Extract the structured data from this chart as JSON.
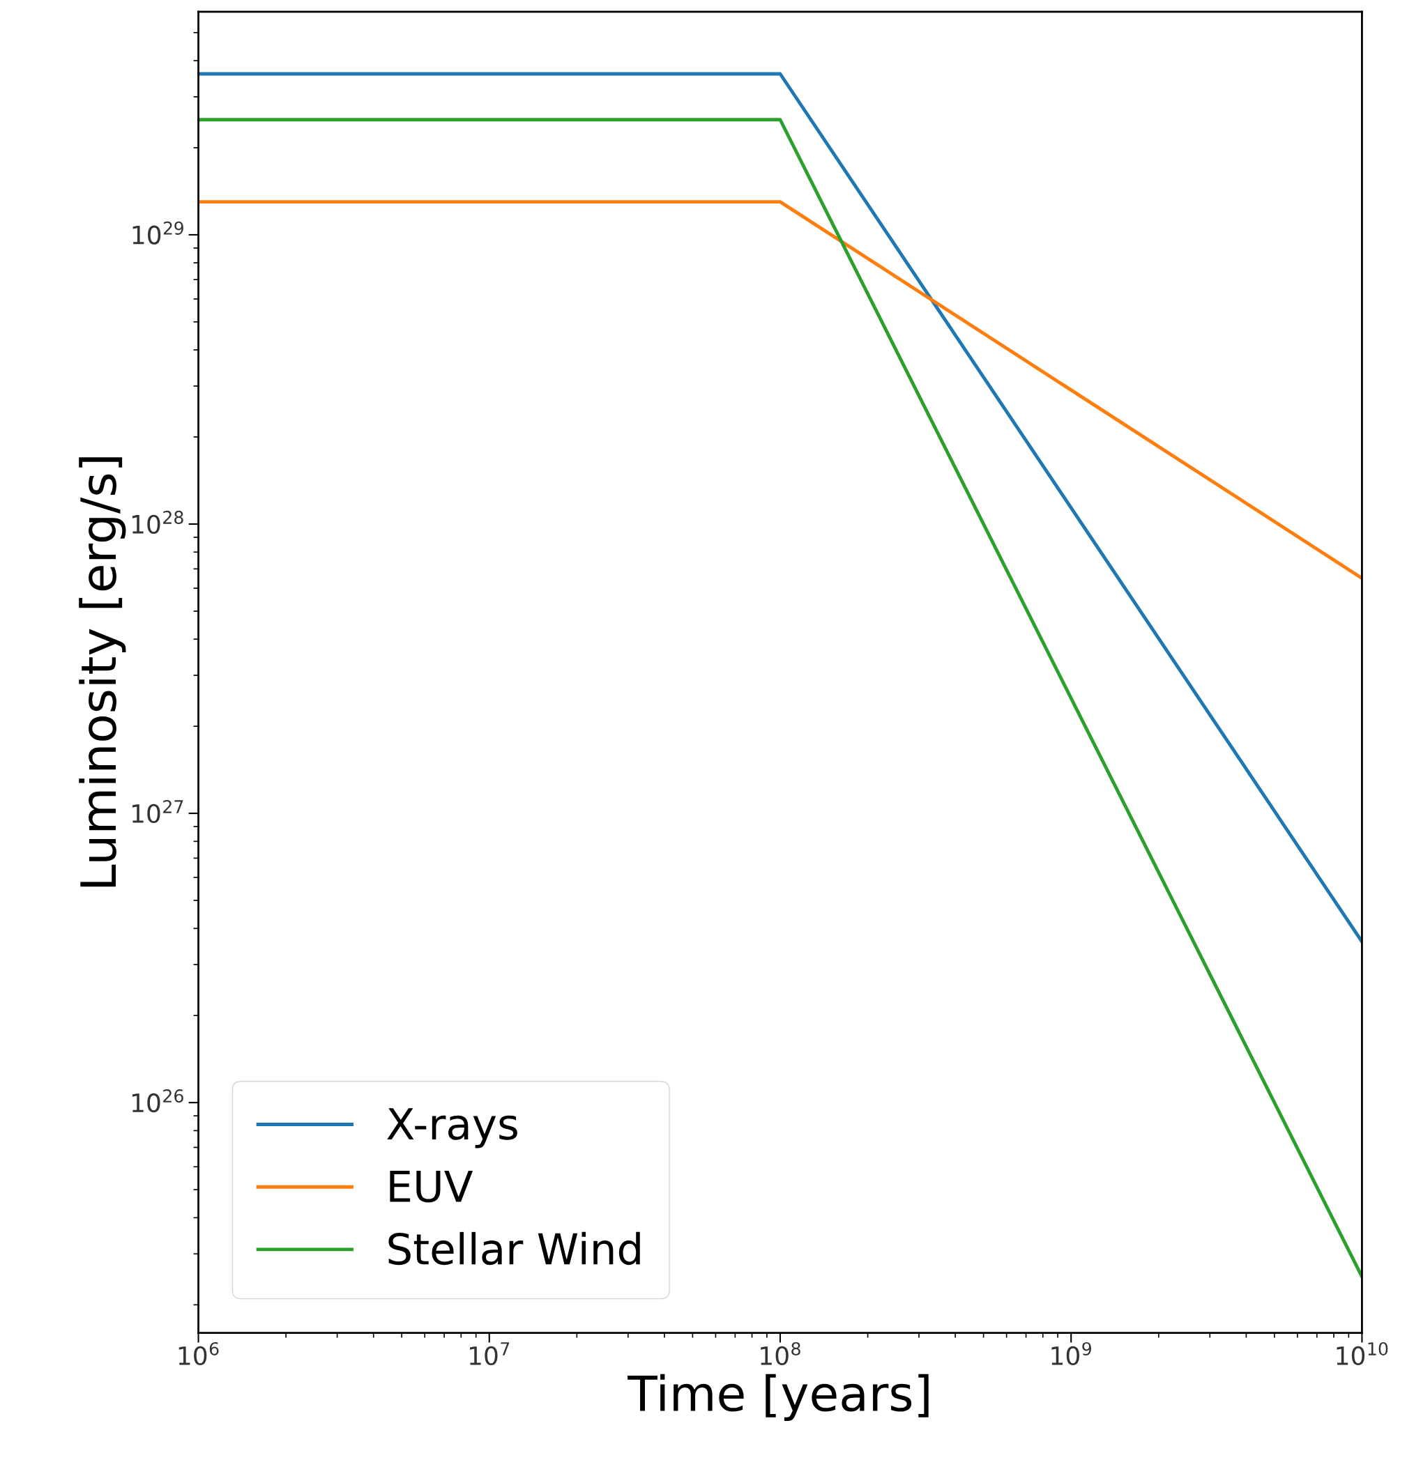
{
  "chart_data": {
    "type": "line",
    "xlabel": "Time [years]",
    "ylabel": "Luminosity [erg/s]",
    "log": "xy",
    "grid": false,
    "legend": "bottom left",
    "marker": "none",
    "line_style": "solid",
    "x": [
      1000000,
      100000000,
      10000000000
    ],
    "series": [
      {
        "name": "X-rays",
        "color": "#1f77b4",
        "values": [
          3.6e+29,
          3.6e+29,
          3.6e+26
        ]
      },
      {
        "name": "EUV",
        "color": "#ff7f0e",
        "values": [
          1.3e+29,
          1.3e+29,
          6.5e+27
        ]
      },
      {
        "name": "Stellar Wind",
        "color": "#2ca02c",
        "values": [
          2.5e+29,
          2.5e+29,
          2.5e+25
        ]
      }
    ],
    "xlim": [
      1000000,
      10000000000
    ],
    "ylim": [
      1.6e+25,
      5.9e+29
    ],
    "xticks": [
      {
        "value": 1000000,
        "label": "10$^{6}$"
      },
      {
        "value": 10000000,
        "label": "10$^{7}$"
      },
      {
        "value": 100000000,
        "label": "10$^{8}$"
      },
      {
        "value": 1000000000,
        "label": "10$^{9}$"
      },
      {
        "value": 10000000000,
        "label": "10$^{10}$"
      }
    ],
    "yticks": [
      {
        "value": 1e+26,
        "label": "10$^{26}$"
      },
      {
        "value": 1e+27,
        "label": "10$^{27}$"
      },
      {
        "value": 1e+28,
        "label": "10$^{28}$"
      },
      {
        "value": 1e+29,
        "label": "10$^{29}$"
      }
    ]
  }
}
